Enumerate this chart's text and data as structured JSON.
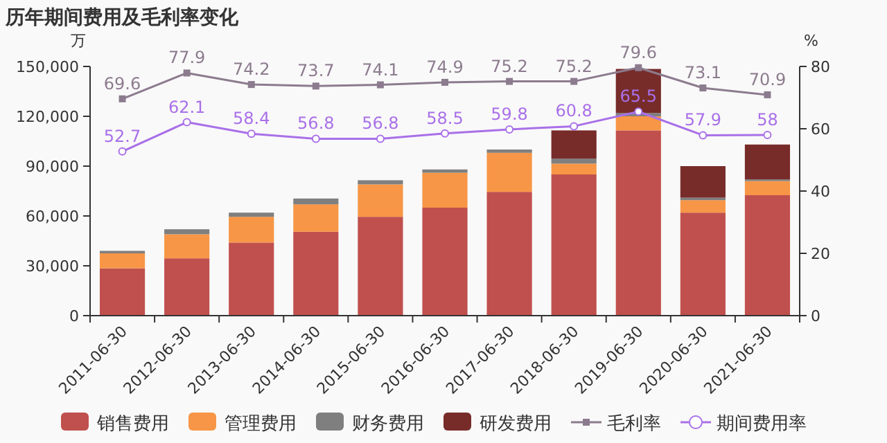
{
  "chart_data": {
    "type": "bar",
    "title": "历年期间费用及毛利率变化",
    "ylabel": "万",
    "y2label": "%",
    "stacked": true,
    "legend": "bottom",
    "grid": false,
    "categories": [
      "2011-06-30",
      "2012-06-30",
      "2013-06-30",
      "2014-06-30",
      "2015-06-30",
      "2016-06-30",
      "2017-06-30",
      "2018-06-30",
      "2019-06-30",
      "2020-06-30",
      "2021-06-30"
    ],
    "ylim": [
      0,
      150000
    ],
    "yticks": [
      {
        "value": 0,
        "label": "0"
      },
      {
        "value": 30000,
        "label": "30,000"
      },
      {
        "value": 60000,
        "label": "60,000"
      },
      {
        "value": 90000,
        "label": "90,000"
      },
      {
        "value": 120000,
        "label": "120,000"
      },
      {
        "value": 150000,
        "label": "150,000"
      }
    ],
    "y2lim": [
      0,
      80
    ],
    "y2ticks": [
      0,
      20,
      40,
      60,
      80
    ],
    "series": [
      {
        "name": "销售费用",
        "color": "#c0504d",
        "values": [
          28500,
          34500,
          44000,
          50500,
          59500,
          65000,
          74500,
          85000,
          111500,
          62000,
          72500
        ]
      },
      {
        "name": "管理费用",
        "color": "#f79646",
        "values": [
          9000,
          14500,
          15500,
          16500,
          19500,
          21000,
          23500,
          6500,
          8500,
          7500,
          8500
        ]
      },
      {
        "name": "财务费用",
        "color": "#7f7f7f",
        "values": [
          1500,
          3000,
          2500,
          3500,
          2500,
          2000,
          2000,
          3000,
          2000,
          1500,
          1000
        ]
      },
      {
        "name": "研发费用",
        "color": "#772c2a",
        "values": [
          0,
          0,
          0,
          0,
          0,
          0,
          0,
          17000,
          26500,
          19000,
          21000
        ]
      },
      {
        "name": "毛利率",
        "type": "line",
        "axis": "y2",
        "marker": "square",
        "color": "#8c7b8e",
        "values": [
          69.6,
          77.9,
          74.2,
          73.7,
          74.1,
          74.9,
          75.2,
          75.2,
          79.6,
          73.1,
          70.9
        ],
        "value_labels": [
          "69.6",
          "77.9",
          "74.2",
          "73.7",
          "74.1",
          "74.9",
          "75.2",
          "75.2",
          "79.6",
          "73.1",
          "70.9"
        ]
      },
      {
        "name": "期间费用率",
        "type": "line",
        "axis": "y2",
        "marker": "circle",
        "color": "#a970e8",
        "values": [
          52.7,
          62.1,
          58.4,
          56.8,
          56.8,
          58.5,
          59.8,
          60.8,
          65.5,
          57.9,
          58
        ],
        "value_labels": [
          "52.7",
          "62.1",
          "58.4",
          "56.8",
          "56.8",
          "58.5",
          "59.8",
          "60.8",
          "65.5",
          "57.9",
          "58"
        ]
      }
    ]
  }
}
